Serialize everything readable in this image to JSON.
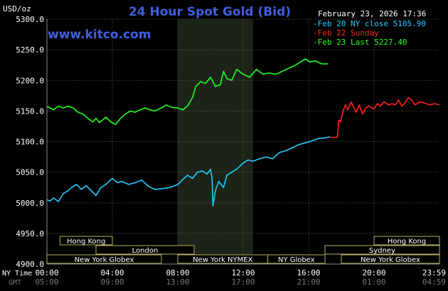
{
  "title": "24 Hour Spot Gold (Bid)",
  "watermark": "www.kitco.com",
  "timestamp": "February 23, 2026 17:36",
  "y_unit": "USD/oz",
  "row_label_nytime": "NY Time",
  "row_label_gmt": "GMT",
  "legend": [
    {
      "text": "Feb 20 NY close 5105.90",
      "color": "#22ccff"
    },
    {
      "text": "Feb 22 Sunday",
      "color": "#ff2222"
    },
    {
      "text": "Feb 23 Last 5227.40",
      "color": "#22ff22"
    }
  ],
  "sessions": [
    {
      "label": "Hong Kong",
      "start": 0.8,
      "end": 4.0
    },
    {
      "label": "London",
      "start": 3.0,
      "end": 9.0
    },
    {
      "label": "New York Globex",
      "start": 0.0,
      "end": 7.0
    },
    {
      "label": "New York NYMEX",
      "start": 8.0,
      "end": 13.5
    },
    {
      "label": "NY Globex",
      "start": 13.5,
      "end": 17.0
    },
    {
      "label": "Hong Kong",
      "start": 20.0,
      "end": 24.0
    },
    {
      "label": "Sydney",
      "start": 17.0,
      "end": 24.0
    },
    {
      "label": "New York Globex",
      "start": 18.0,
      "end": 24.0
    }
  ],
  "colors": {
    "background": "#000000",
    "shade": "#1c2419",
    "grid": "#555555",
    "axis_text": "#ffffff",
    "gmt_text": "#777777",
    "title": "#3f5fe0",
    "session_border": "#b8b060",
    "session_text": "#ffffff"
  },
  "chart_data": {
    "type": "line",
    "ylim": [
      4900,
      5300
    ],
    "yticks": [
      "5300.0",
      "5250.0",
      "5200.0",
      "5150.0",
      "5100.0",
      "5050.0",
      "5000.0",
      "4950.0",
      "4900.0"
    ],
    "xlim": [
      0,
      24
    ],
    "xticks": [
      {
        "ny": "00:00",
        "gmt": "05:00"
      },
      {
        "ny": "04:00",
        "gmt": "09:00"
      },
      {
        "ny": "08:00",
        "gmt": "13:00"
      },
      {
        "ny": "12:00",
        "gmt": "17:00"
      },
      {
        "ny": "16:00",
        "gmt": "21:00"
      },
      {
        "ny": "20:00",
        "gmt": "01:00"
      },
      {
        "ny": "23:59",
        "gmt": "04:59"
      }
    ],
    "shaded_range": [
      8.0,
      12.6
    ],
    "series": [
      {
        "name": "Feb 20 NY close 5105.90",
        "color": "#22ccff",
        "x": [
          0.0,
          0.2,
          0.4,
          0.7,
          1.0,
          1.3,
          1.5,
          1.8,
          2.1,
          2.4,
          2.7,
          3.0,
          3.3,
          3.6,
          4.0,
          4.3,
          4.6,
          5.0,
          5.4,
          5.8,
          6.2,
          6.6,
          7.0,
          7.5,
          8.0,
          8.3,
          8.6,
          8.9,
          9.2,
          9.5,
          9.8,
          10.0,
          10.1,
          10.15,
          10.3,
          10.5,
          10.8,
          11.0,
          11.3,
          11.6,
          12.0,
          12.3,
          12.6,
          13.0,
          13.4,
          13.8,
          14.2,
          14.6,
          15.0,
          15.4,
          15.8,
          16.2,
          16.6,
          17.0,
          17.3
        ],
        "values": [
          5005,
          5003,
          5008,
          5002,
          5015,
          5020,
          5025,
          5030,
          5022,
          5028,
          5020,
          5012,
          5025,
          5030,
          5040,
          5033,
          5035,
          5030,
          5033,
          5037,
          5027,
          5022,
          5023,
          5025,
          5030,
          5038,
          5045,
          5040,
          5050,
          5052,
          5047,
          5055,
          5040,
          4995,
          5020,
          5035,
          5025,
          5045,
          5050,
          5055,
          5065,
          5070,
          5068,
          5072,
          5075,
          5072,
          5082,
          5085,
          5090,
          5095,
          5098,
          5101,
          5105,
          5106,
          5108
        ]
      },
      {
        "name": "Feb 22 Sunday",
        "color": "#ff2222",
        "x": [
          17.3,
          17.5,
          17.75,
          17.85,
          17.95,
          18.1,
          18.25,
          18.4,
          18.6,
          18.75,
          18.9,
          19.1,
          19.3,
          19.5,
          19.7,
          20.0,
          20.2,
          20.4,
          20.6,
          20.9,
          21.1,
          21.3,
          21.5,
          21.7,
          21.9,
          22.1,
          22.3,
          22.5,
          22.8,
          23.1,
          23.4,
          23.7,
          23.99
        ],
        "values": [
          5107,
          5107,
          5107,
          5135,
          5132,
          5150,
          5160,
          5152,
          5165,
          5156,
          5148,
          5160,
          5145,
          5155,
          5158,
          5153,
          5162,
          5158,
          5165,
          5160,
          5162,
          5160,
          5168,
          5158,
          5163,
          5172,
          5168,
          5160,
          5165,
          5163,
          5160,
          5162,
          5160
        ]
      },
      {
        "name": "Feb 23 Last 5227.40",
        "color": "#22ff22",
        "x": [
          0.0,
          0.2,
          0.4,
          0.7,
          1.0,
          1.3,
          1.6,
          1.9,
          2.2,
          2.5,
          2.8,
          3.0,
          3.2,
          3.4,
          3.6,
          3.9,
          4.2,
          4.5,
          4.8,
          5.1,
          5.4,
          5.7,
          6.0,
          6.3,
          6.6,
          7.0,
          7.3,
          7.6,
          8.0,
          8.3,
          8.6,
          8.9,
          9.1,
          9.4,
          9.7,
          10.0,
          10.3,
          10.6,
          10.8,
          11.0,
          11.3,
          11.6,
          12.0,
          12.4,
          12.8,
          13.2,
          13.6,
          14.0,
          14.4,
          14.8,
          15.2,
          15.5,
          15.8,
          16.1,
          16.4,
          16.8,
          17.2
        ],
        "values": [
          5157,
          5155,
          5152,
          5158,
          5155,
          5158,
          5155,
          5148,
          5145,
          5138,
          5132,
          5138,
          5131,
          5135,
          5140,
          5132,
          5128,
          5138,
          5145,
          5150,
          5148,
          5152,
          5155,
          5152,
          5150,
          5155,
          5160,
          5156,
          5155,
          5152,
          5158,
          5172,
          5190,
          5198,
          5195,
          5205,
          5190,
          5193,
          5215,
          5203,
          5200,
          5218,
          5210,
          5205,
          5218,
          5210,
          5212,
          5210,
          5215,
          5220,
          5225,
          5230,
          5235,
          5230,
          5232,
          5227,
          5227
        ]
      }
    ]
  }
}
